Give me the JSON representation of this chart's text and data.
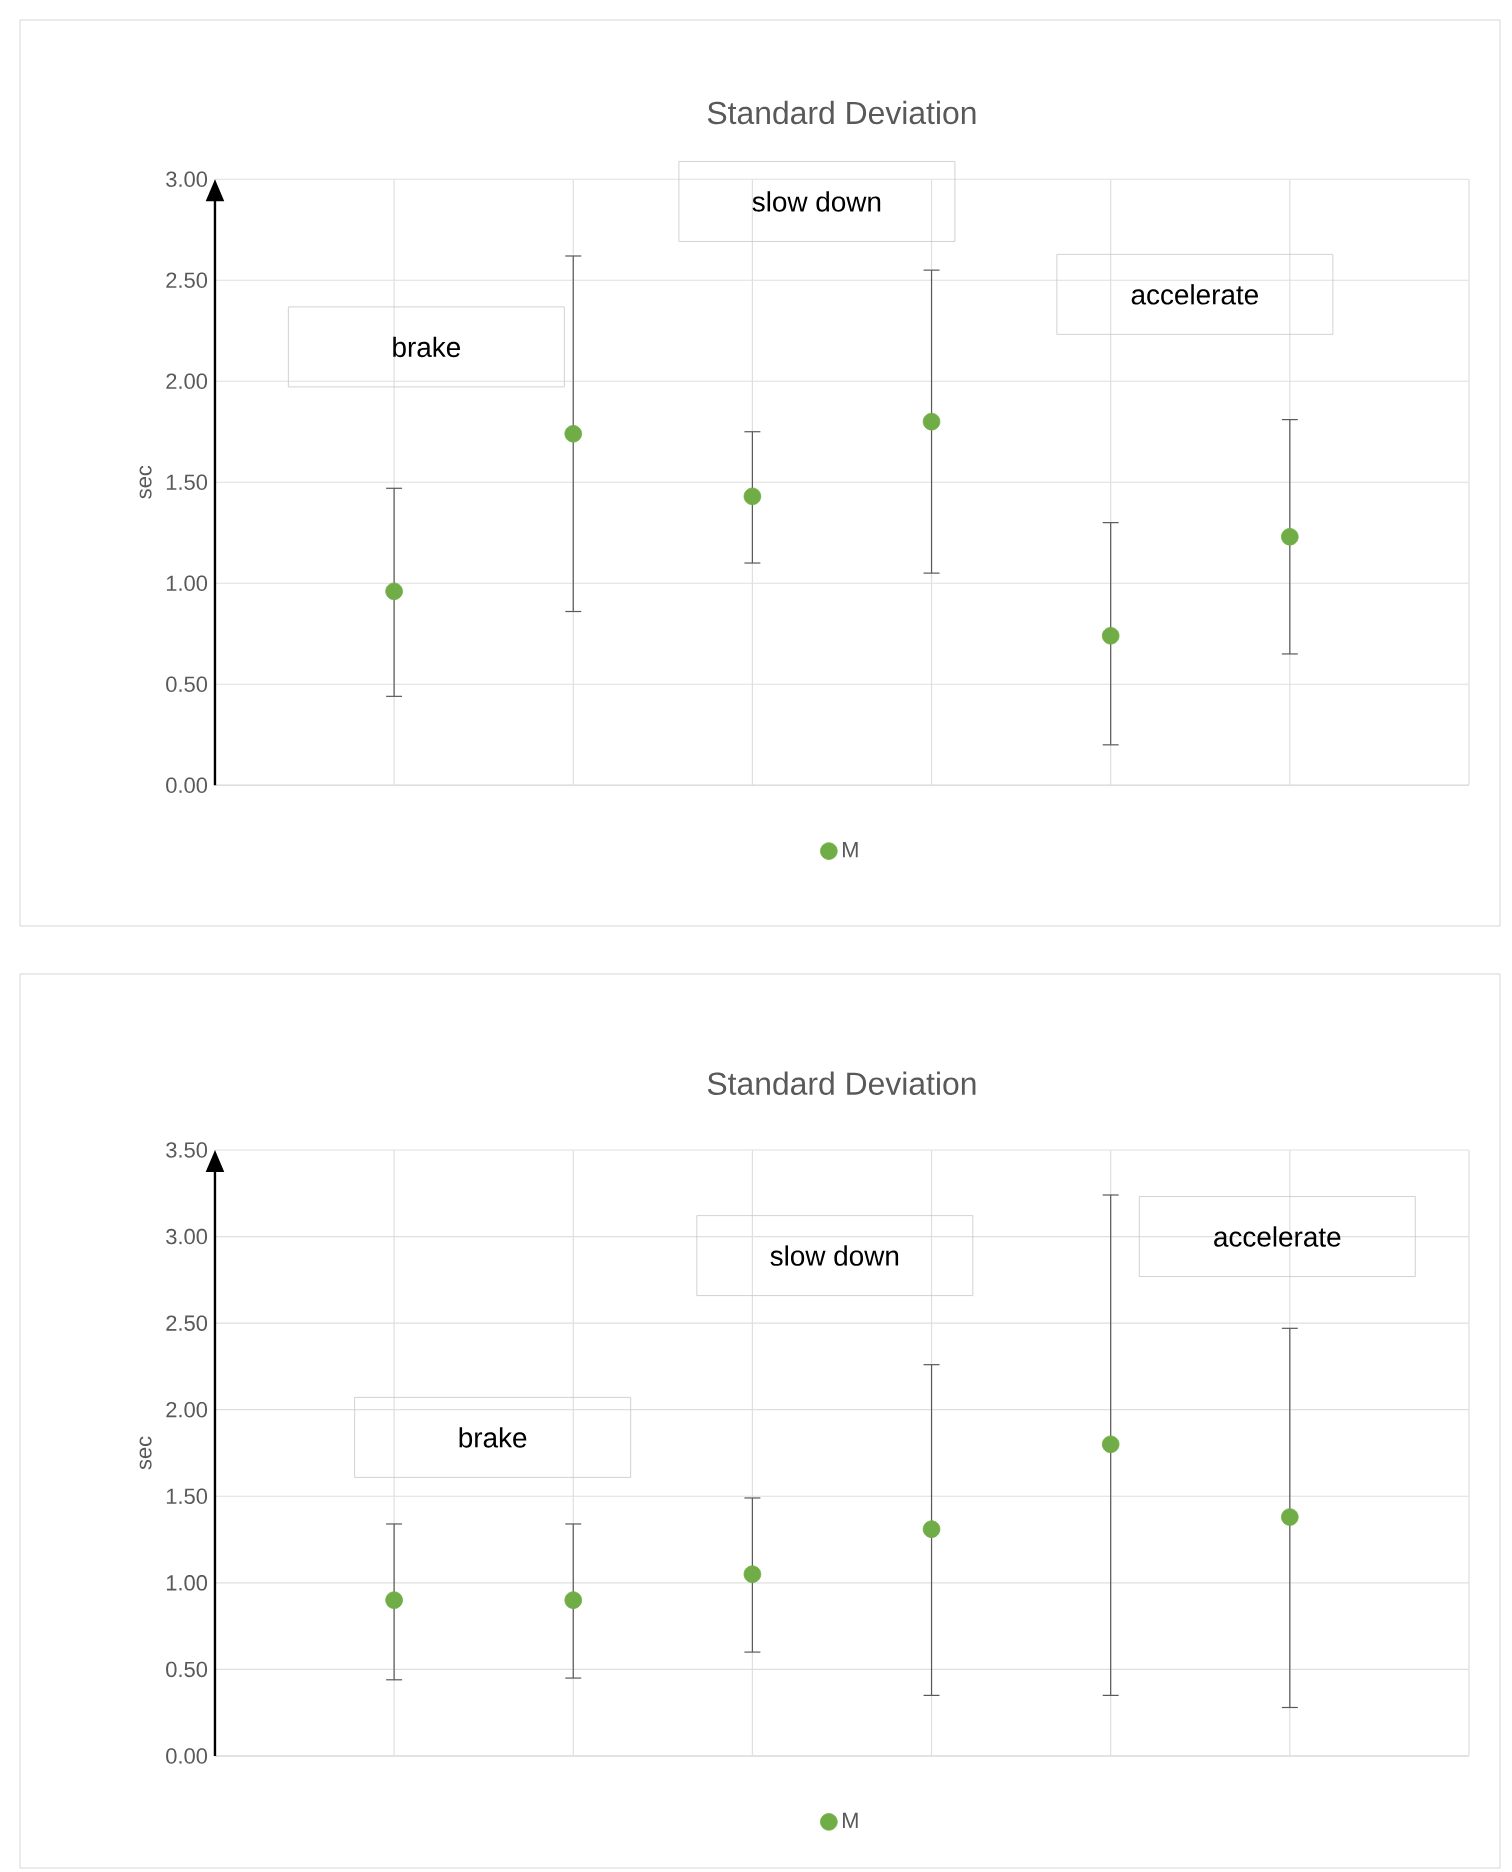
{
  "chart_data": [
    {
      "type": "scatter",
      "title": "Standard Deviation",
      "ylabel": "sec",
      "categories": [
        null,
        null,
        null,
        null,
        null,
        null
      ],
      "series": [
        {
          "name": "M",
          "color": "#70ad47",
          "values": [
            0.96,
            1.74,
            1.43,
            1.8,
            0.74,
            1.23
          ],
          "errors": [
            [
              0.44,
              1.47
            ],
            [
              0.86,
              2.62
            ],
            [
              1.1,
              1.75
            ],
            [
              1.05,
              2.55
            ],
            [
              0.2,
              1.3
            ],
            [
              0.65,
              1.81
            ]
          ]
        }
      ],
      "annotations": [
        "brake",
        "slow down",
        "accelerate"
      ],
      "ylim": [
        0,
        3
      ],
      "yticks": [
        {
          "value": 0,
          "label": "0.00"
        },
        {
          "value": 0.5,
          "label": "0.50"
        },
        {
          "value": 1,
          "label": "1.00"
        },
        {
          "value": 1.5,
          "label": "1.50"
        },
        {
          "value": 2,
          "label": "2.00"
        },
        {
          "value": 2.5,
          "label": "2.50"
        },
        {
          "value": 3,
          "label": "3.00"
        }
      ],
      "grid": true,
      "legend": "bottom",
      "marker": "circle",
      "tick_labels": "y"
    },
    {
      "type": "scatter",
      "title": "Standard Deviation",
      "ylabel": "sec",
      "categories": [
        null,
        null,
        null,
        null,
        null,
        null
      ],
      "series": [
        {
          "name": "M",
          "color": "#70ad47",
          "values": [
            0.9,
            0.9,
            1.05,
            1.31,
            1.8,
            1.38
          ],
          "errors": [
            [
              0.44,
              1.34
            ],
            [
              0.45,
              1.34
            ],
            [
              0.6,
              1.49
            ],
            [
              0.35,
              2.26
            ],
            [
              0.35,
              3.24
            ],
            [
              0.28,
              2.47
            ]
          ]
        }
      ],
      "annotations": [
        "brake",
        "slow down",
        "accelerate"
      ],
      "ylim": [
        0,
        3.5
      ],
      "yticks": [
        {
          "value": 0,
          "label": "0.00"
        },
        {
          "value": 0.5,
          "label": "0.50"
        },
        {
          "value": 1,
          "label": "1.00"
        },
        {
          "value": 1.5,
          "label": "1.50"
        },
        {
          "value": 2,
          "label": "2.00"
        },
        {
          "value": 2.5,
          "label": "2.50"
        },
        {
          "value": 3,
          "label": "3.00"
        },
        {
          "value": 3.5,
          "label": "3.50"
        }
      ],
      "grid": true,
      "legend": "bottom",
      "marker": "circle",
      "tick_labels": "y"
    }
  ]
}
